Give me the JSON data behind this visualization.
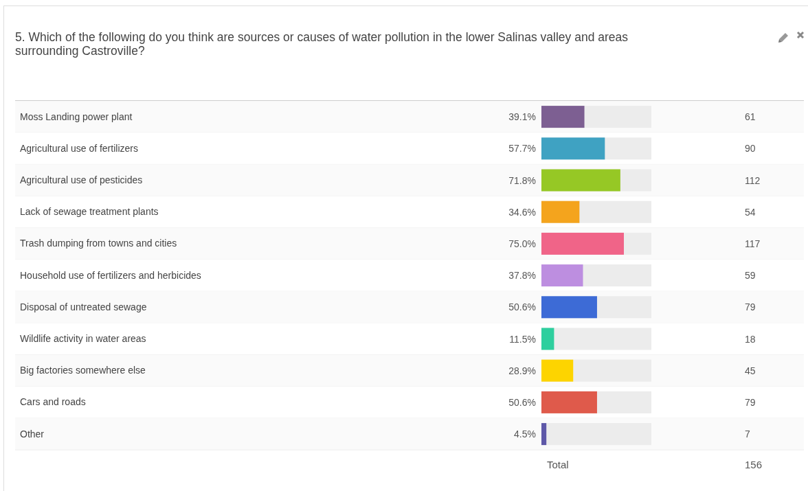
{
  "chart_data": {
    "type": "bar",
    "orientation": "horizontal",
    "title": "5. Which of the following do you think are sources or causes of water pollution in the lower Salinas valley and areas surrounding Castroville?",
    "categories": [
      "Moss Landing power plant",
      "Agricultural use of fertilizers",
      "Agricultural use of pesticides",
      "Lack of sewage treatment plants",
      "Trash dumping from towns and cities",
      "Household use of fertilizers and herbicides",
      "Disposal of untreated sewage",
      "Wildlife activity in water areas",
      "Big factories somewhere else",
      "Cars and roads",
      "Other"
    ],
    "values": [
      39.1,
      57.7,
      71.8,
      34.6,
      75.0,
      37.8,
      50.6,
      11.5,
      28.9,
      50.6,
      4.5
    ],
    "value_labels": [
      "39.1%",
      "57.7%",
      "71.8%",
      "34.6%",
      "75.0%",
      "37.8%",
      "50.6%",
      "11.5%",
      "28.9%",
      "50.6%",
      "4.5%"
    ],
    "colors": [
      "#7d5f92",
      "#3fa2c2",
      "#96c825",
      "#f4a41d",
      "#f06488",
      "#bd8ee0",
      "#3d6bd6",
      "#2ecf9e",
      "#fdd400",
      "#df5a4b",
      "#5e58a8"
    ],
    "xlim": [
      0,
      100
    ],
    "annotations": [
      "61",
      "90",
      "112",
      "54",
      "117",
      "59",
      "79",
      "18",
      "45",
      "79",
      "7",
      "Total",
      "156"
    ]
  }
}
